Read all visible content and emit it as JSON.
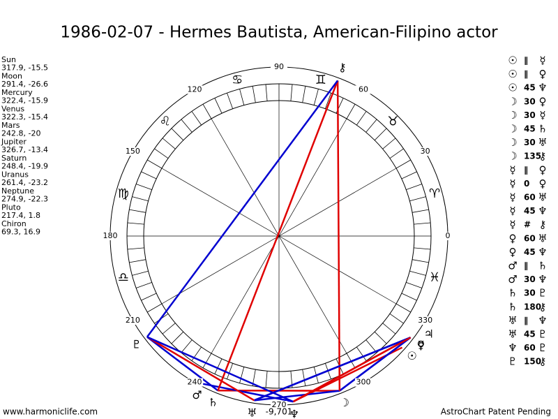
{
  "title": "1986-02-07 - Hermes Bautista, American-Filipino actor",
  "planets": [
    {
      "name": "Sun",
      "glyph": "☉",
      "longitude": 317.9,
      "declination": -15.5
    },
    {
      "name": "Moon",
      "glyph": "☽",
      "longitude": 291.4,
      "declination": -26.6
    },
    {
      "name": "Mercury",
      "glyph": "☿",
      "longitude": 322.4,
      "declination": -15.9
    },
    {
      "name": "Venus",
      "glyph": "♀",
      "longitude": 322.3,
      "declination": -15.4
    },
    {
      "name": "Mars",
      "glyph": "♂",
      "longitude": 242.8,
      "declination": -20.0
    },
    {
      "name": "Jupiter",
      "glyph": "♃",
      "longitude": 326.7,
      "declination": -13.4
    },
    {
      "name": "Saturn",
      "glyph": "♄",
      "longitude": 248.4,
      "declination": -19.9
    },
    {
      "name": "Uranus",
      "glyph": "♅",
      "longitude": 261.4,
      "declination": -23.2
    },
    {
      "name": "Neptune",
      "glyph": "♆",
      "longitude": 274.9,
      "declination": -22.3
    },
    {
      "name": "Pluto",
      "glyph": "♇",
      "longitude": 217.4,
      "declination": 1.8
    },
    {
      "name": "Chiron",
      "glyph": "⚷",
      "longitude": 69.3,
      "declination": 16.9
    }
  ],
  "aspects": [
    {
      "a": "☉",
      "aspect": "∥",
      "b": "☿"
    },
    {
      "a": "☉",
      "aspect": "∥",
      "b": "♀"
    },
    {
      "a": "☉",
      "aspect": 45,
      "b": "♆"
    },
    {
      "a": "☽",
      "aspect": 30,
      "b": "♀"
    },
    {
      "a": "☽",
      "aspect": 30,
      "b": "☿"
    },
    {
      "a": "☽",
      "aspect": 45,
      "b": "♄"
    },
    {
      "a": "☽",
      "aspect": 30,
      "b": "♅"
    },
    {
      "a": "☽",
      "aspect": 135,
      "b": "⚷"
    },
    {
      "a": "☿",
      "aspect": "∥",
      "b": "♀"
    },
    {
      "a": "☿",
      "aspect": 0,
      "b": "♀"
    },
    {
      "a": "☿",
      "aspect": 60,
      "b": "♅"
    },
    {
      "a": "☿",
      "aspect": 45,
      "b": "♆"
    },
    {
      "a": "☿",
      "aspect": "#",
      "b": "⚷"
    },
    {
      "a": "♀",
      "aspect": 60,
      "b": "♅"
    },
    {
      "a": "♀",
      "aspect": 45,
      "b": "♆"
    },
    {
      "a": "♂",
      "aspect": "∥",
      "b": "♄"
    },
    {
      "a": "♂",
      "aspect": 30,
      "b": "♆"
    },
    {
      "a": "♄",
      "aspect": 30,
      "b": "♇"
    },
    {
      "a": "♄",
      "aspect": 180,
      "b": "⚷"
    },
    {
      "a": "♅",
      "aspect": "∥",
      "b": "♆"
    },
    {
      "a": "♅",
      "aspect": 45,
      "b": "♇"
    },
    {
      "a": "♆",
      "aspect": 60,
      "b": "♇"
    },
    {
      "a": "♇",
      "aspect": 150,
      "b": "⚷"
    }
  ],
  "line_colors": {
    "0": "#e00000",
    "45": "#e00000",
    "90": "#e00000",
    "135": "#e00000",
    "180": "#e00000",
    "30": "#0000d0",
    "60": "#0000d0",
    "120": "#0000d0",
    "150": "#0000d0"
  },
  "degree_ticks": [
    0,
    30,
    60,
    90,
    120,
    150,
    180,
    210,
    240,
    270,
    300,
    330
  ],
  "signs": [
    "♈",
    "♉",
    "♊",
    "♋",
    "♌",
    "♍",
    "♎",
    null,
    null,
    null,
    null,
    "♓"
  ],
  "bottom_label": "-9,701",
  "footer_left": "www.harmoniclife.com",
  "footer_right": "AstroChart Patent Pending"
}
